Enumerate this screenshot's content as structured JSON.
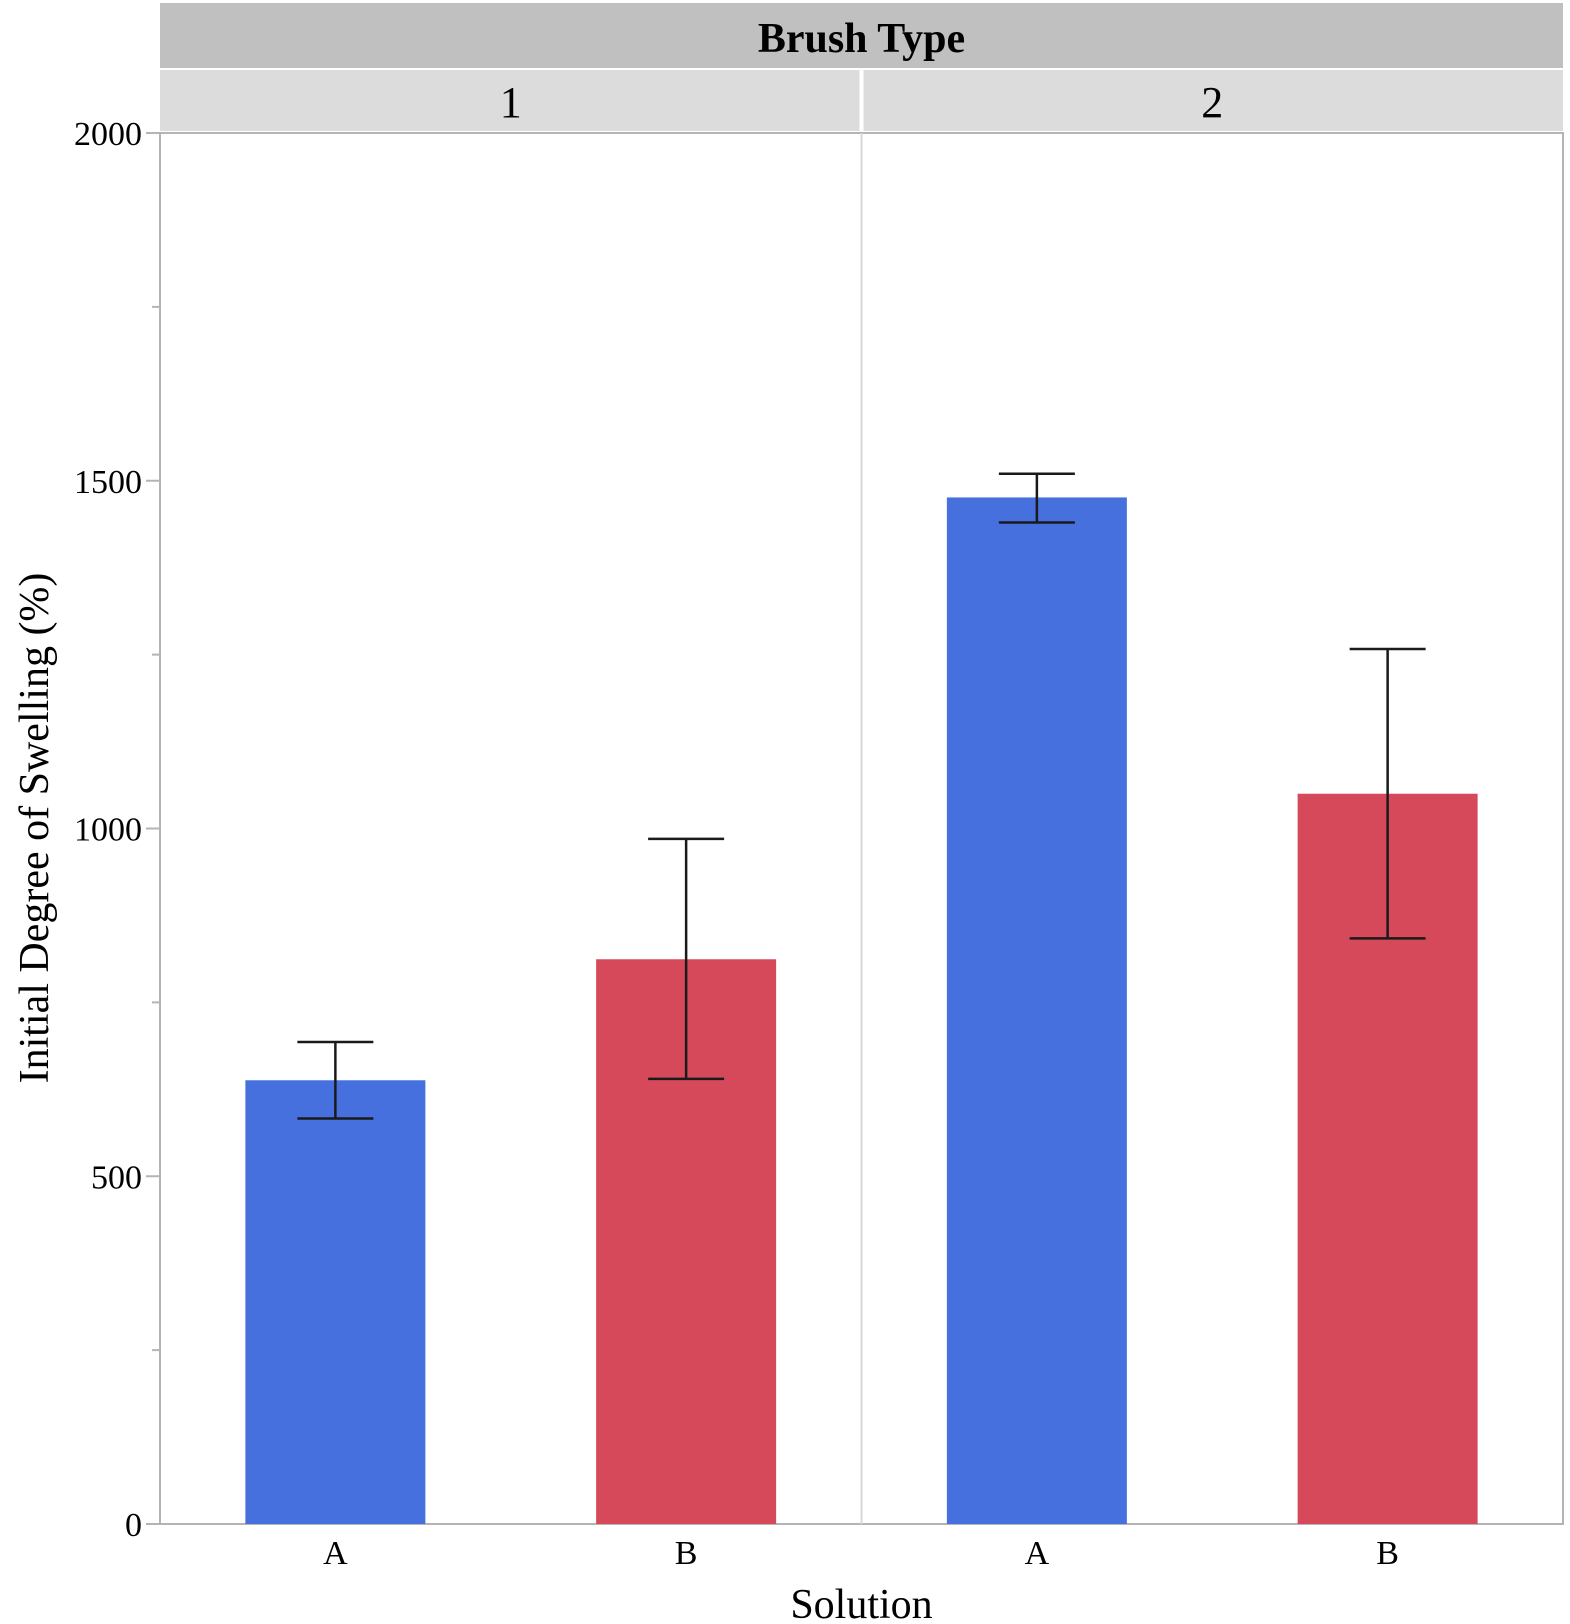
{
  "chart_data": {
    "type": "bar",
    "facet_title": "Brush Type",
    "facets": [
      {
        "label": "1",
        "categories": [
          "A",
          "B"
        ],
        "values": [
          638,
          812
        ],
        "errors": [
          [
            583,
            693
          ],
          [
            640,
            985
          ]
        ]
      },
      {
        "label": "2",
        "categories": [
          "A",
          "B"
        ],
        "values": [
          1476,
          1050
        ],
        "errors": [
          [
            1440,
            1510
          ],
          [
            842,
            1258
          ]
        ]
      }
    ],
    "xlabel": "Solution",
    "ylabel": "Initial Degree of Swelling (%)",
    "ylim": [
      0,
      2000
    ],
    "yticks": [
      0,
      500,
      1000,
      1500,
      2000
    ],
    "ytick_labels": [
      "0",
      "500",
      "1000",
      "1500",
      "2000"
    ],
    "minor_yticks": [
      250,
      750,
      1250,
      1750
    ],
    "colors": {
      "A": "#4570DE",
      "B": "#D5495A",
      "strip_title_bg": "#C0C0C0",
      "strip_facet_bg": "#DCDCDC",
      "frame": "#B4B4B4",
      "divider": "#D8D8D8",
      "error": "#1A1A1A",
      "text": "#000000"
    }
  }
}
